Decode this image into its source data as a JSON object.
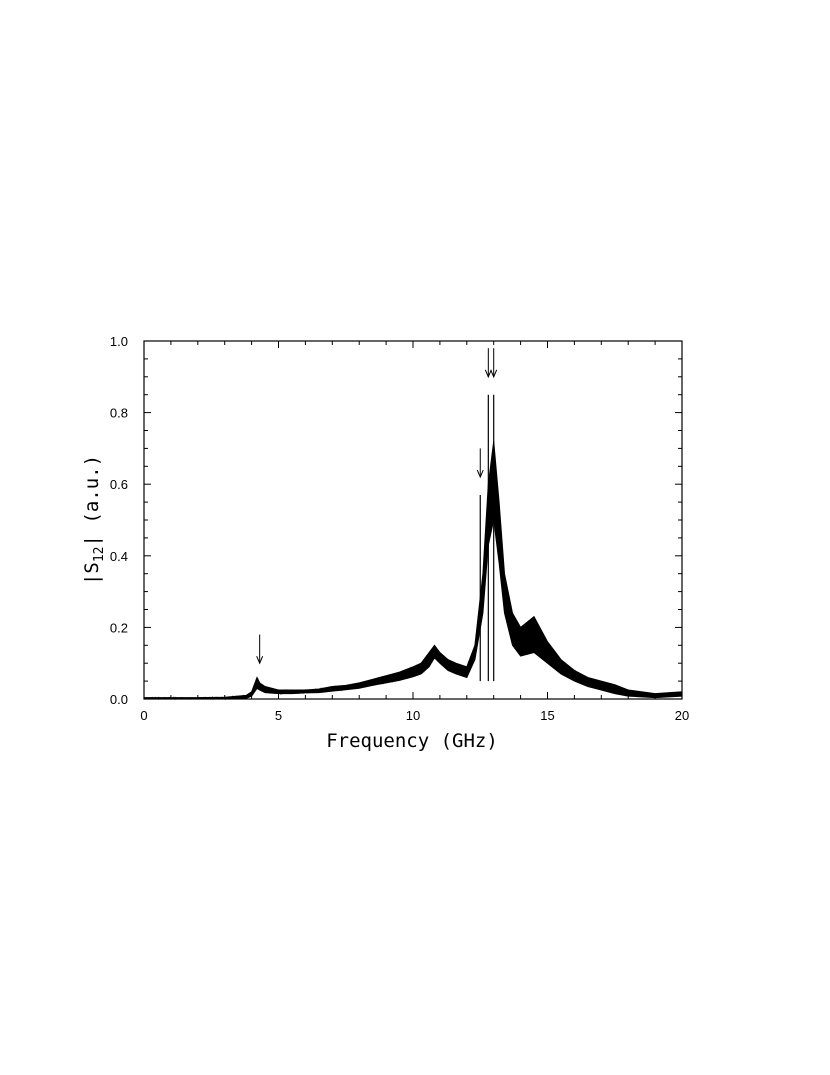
{
  "chart_data": {
    "type": "line",
    "title": "",
    "xlabel": "Frequency (GHz)",
    "ylabel": {
      "prefix": "|S",
      "subscript": "12",
      "suffix": "| (a.u.)"
    },
    "xlim": [
      0,
      20
    ],
    "ylim": [
      0,
      1.0
    ],
    "x_ticks": [
      0,
      5,
      10,
      15,
      20
    ],
    "x_tick_labels": [
      "0",
      "5",
      "10",
      "15",
      "20"
    ],
    "y_ticks": [
      0.0,
      0.2,
      0.4,
      0.6,
      0.8,
      1.0
    ],
    "y_tick_labels": [
      "0.0",
      "0.2",
      "0.4",
      "0.6",
      "0.8",
      "1.0"
    ],
    "grid": false,
    "legend": "none",
    "series": [
      {
        "x": [
          0,
          1,
          2,
          3,
          3.8,
          4.0,
          4.2,
          4.3,
          4.5,
          5.0,
          5.5,
          6.0,
          6.5,
          7.0,
          7.5,
          8.0,
          8.5,
          9.0,
          9.5,
          10.0,
          10.3,
          10.6,
          10.8,
          11.0,
          11.3,
          11.6,
          12.0,
          12.3,
          12.6,
          12.8,
          13.0,
          13.2,
          13.4,
          13.7,
          14.0,
          14.5,
          15.0,
          15.5,
          16.0,
          16.5,
          17.0,
          17.5,
          18.0,
          19.0,
          20.0
        ],
        "y_upper": [
          0.004,
          0.004,
          0.004,
          0.005,
          0.01,
          0.02,
          0.06,
          0.045,
          0.035,
          0.025,
          0.025,
          0.025,
          0.028,
          0.035,
          0.038,
          0.045,
          0.055,
          0.065,
          0.075,
          0.09,
          0.1,
          0.13,
          0.15,
          0.13,
          0.11,
          0.1,
          0.09,
          0.15,
          0.35,
          0.6,
          0.72,
          0.55,
          0.35,
          0.24,
          0.2,
          0.23,
          0.16,
          0.11,
          0.08,
          0.06,
          0.05,
          0.04,
          0.025,
          0.015,
          0.02
        ],
        "y_lower": [
          0.0,
          0.0,
          0.0,
          0.0,
          0.002,
          0.008,
          0.03,
          0.025,
          0.018,
          0.015,
          0.015,
          0.017,
          0.018,
          0.022,
          0.026,
          0.03,
          0.038,
          0.045,
          0.052,
          0.062,
          0.07,
          0.09,
          0.115,
          0.1,
          0.08,
          0.07,
          0.06,
          0.11,
          0.24,
          0.43,
          0.5,
          0.38,
          0.24,
          0.15,
          0.12,
          0.13,
          0.1,
          0.07,
          0.05,
          0.035,
          0.025,
          0.015,
          0.008,
          0.004,
          0.008
        ]
      }
    ],
    "spikes": [
      {
        "x": 12.5,
        "y": 0.57
      },
      {
        "x": 12.8,
        "y": 0.85
      },
      {
        "x": 13.0,
        "y": 0.85
      }
    ],
    "arrows": [
      {
        "x": 4.3,
        "y_top": 0.18,
        "y_tip": 0.1
      },
      {
        "x": 12.5,
        "y_top": 0.7,
        "y_tip": 0.62
      },
      {
        "x": 12.8,
        "y_top": 0.98,
        "y_tip": 0.9
      },
      {
        "x": 13.0,
        "y_top": 0.98,
        "y_tip": 0.9
      }
    ]
  }
}
